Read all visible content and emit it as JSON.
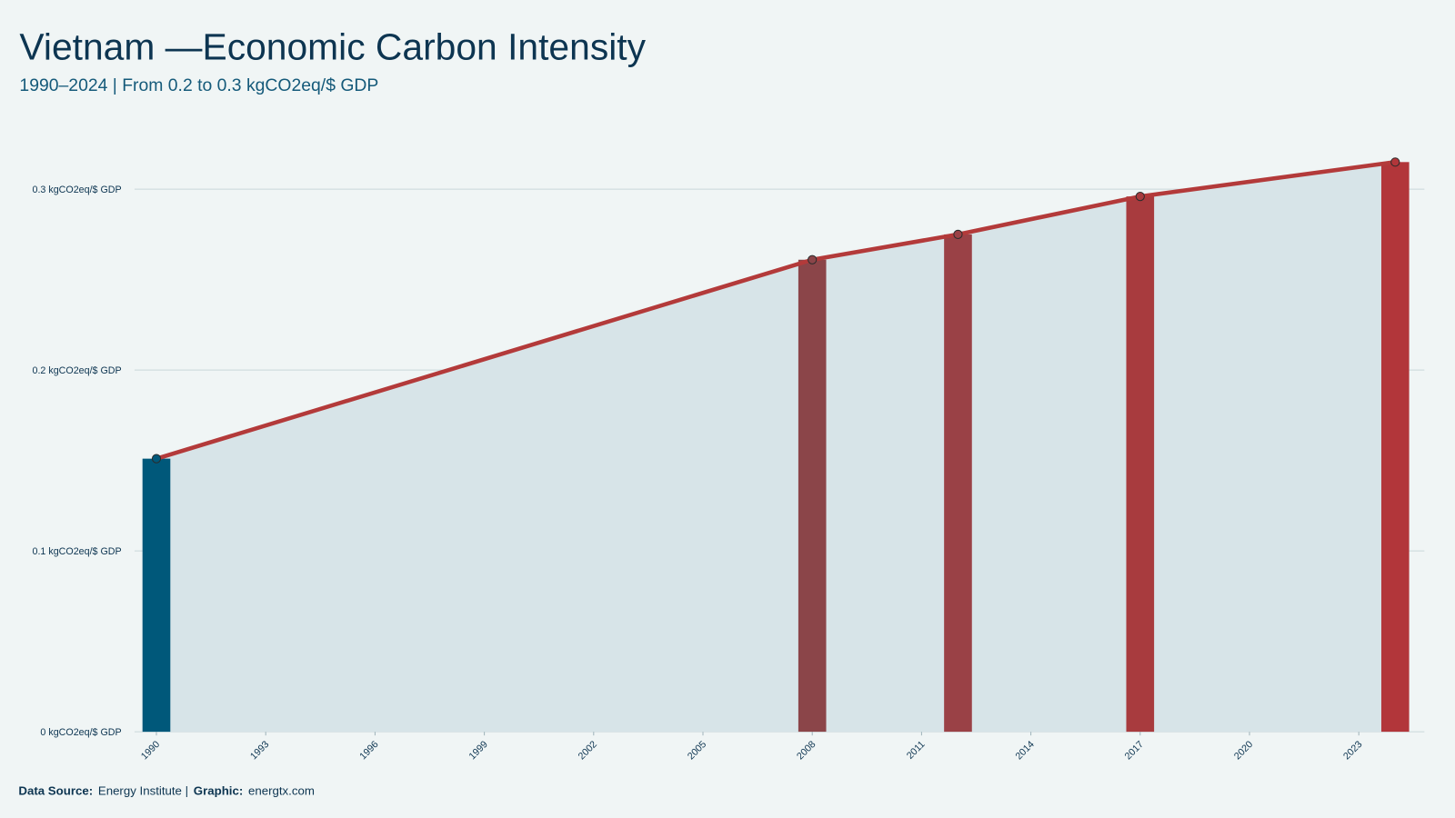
{
  "chart_data": {
    "type": "line",
    "title": "Vietnam —Economic Carbon Intensity",
    "subtitle": "1990–2024 | From 0.2 to 0.3 kgCO2eq/$ GDP",
    "x": [
      1990,
      2008,
      2012,
      2017,
      2024
    ],
    "values": [
      0.151,
      0.261,
      0.275,
      0.296,
      0.315
    ],
    "color": "#b33a3a",
    "bar_colors": [
      "#00587a",
      "#8b4549",
      "#9a4146",
      "#a83b3e",
      "#b2363a"
    ],
    "area_color": "#d7e4e8",
    "xlim": [
      1989.4,
      2024.8
    ],
    "xticks": [
      1990,
      1993,
      1996,
      1999,
      2002,
      2005,
      2008,
      2011,
      2014,
      2017,
      2020,
      2023
    ],
    "ylim": [
      0,
      0.33
    ],
    "yticks": [
      {
        "value": 0,
        "label": "0 kgCO2eq/$ GDP"
      },
      {
        "value": 0.1,
        "label": "0.1 kgCO2eq/$ GDP"
      },
      {
        "value": 0.2,
        "label": "0.2 kgCO2eq/$ GDP"
      },
      {
        "value": 0.3,
        "label": "0.3 kgCO2eq/$ GDP"
      }
    ],
    "grid": true,
    "footer": [
      "Data Source:",
      "Energy Institute |",
      "Graphic:",
      "energtx.com"
    ]
  }
}
